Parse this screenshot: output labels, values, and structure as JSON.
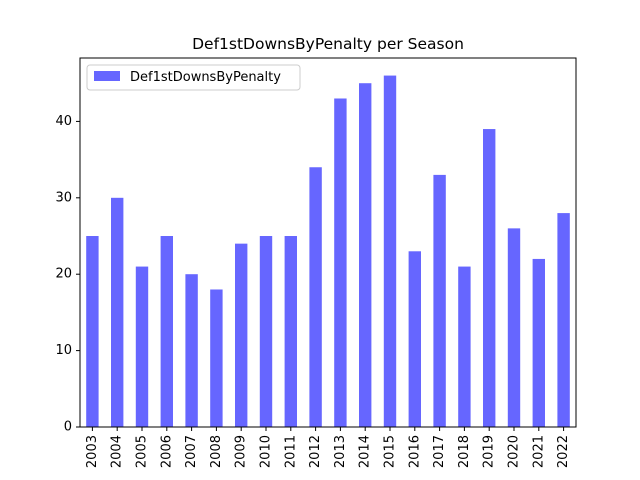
{
  "chart_data": {
    "type": "bar",
    "title": "Def1stDownsByPenalty per Season",
    "xlabel": "",
    "ylabel": "",
    "categories": [
      "2003",
      "2004",
      "2005",
      "2006",
      "2007",
      "2008",
      "2009",
      "2010",
      "2011",
      "2012",
      "2013",
      "2014",
      "2015",
      "2016",
      "2017",
      "2018",
      "2019",
      "2020",
      "2021",
      "2022"
    ],
    "series": [
      {
        "name": "Def1stDownsByPenalty",
        "color": "#6666ff",
        "values": [
          25,
          30,
          21,
          25,
          20,
          18,
          24,
          25,
          25,
          34,
          43,
          45,
          46,
          23,
          33,
          21,
          39,
          26,
          22,
          28
        ]
      }
    ],
    "ylim": [
      0,
      48.3
    ],
    "yticks": [
      "0",
      "10",
      "20",
      "30",
      "40"
    ],
    "grid": false,
    "legend_position": "top-left"
  }
}
